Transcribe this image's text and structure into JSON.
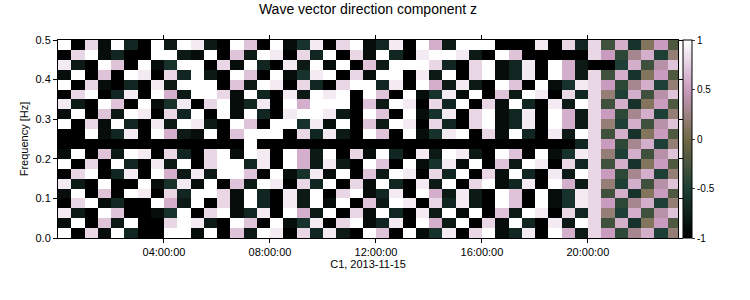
{
  "chart_data": {
    "type": "heatmap",
    "title": "Wave vector direction component z",
    "x_label": "C1, 2013-11-15",
    "y_label": "Frequency [Hz]",
    "xlim": [
      0,
      23.4
    ],
    "ylim": [
      0,
      0.5
    ],
    "xticks": [
      {
        "value": 4,
        "label": "04:00:00"
      },
      {
        "value": 8,
        "label": "08:00:00"
      },
      {
        "value": 12,
        "label": "12:00:00"
      },
      {
        "value": 16,
        "label": "16:00:00"
      },
      {
        "value": 20,
        "label": "20:00:00"
      }
    ],
    "yticks": [
      {
        "value": 0,
        "label": "0.0"
      },
      0.1,
      0.2,
      0.3,
      0.4,
      0.5
    ],
    "colorbar": {
      "range": [
        -1,
        1
      ],
      "ticks": [
        -1,
        -0.5,
        0,
        0.5,
        1
      ]
    },
    "x": [
      0.25,
      0.75,
      1.25,
      1.75,
      2.25,
      2.75,
      3.25,
      3.75,
      4.25,
      4.75,
      5.25,
      5.75,
      6.25,
      6.75,
      7.25,
      7.75,
      8.25,
      8.75,
      9.25,
      9.75,
      10.25,
      10.75,
      11.25,
      11.75,
      12.25,
      12.75,
      13.25,
      13.75,
      14.25,
      14.75,
      15.25,
      15.75,
      16.25,
      16.75,
      17.25,
      17.75,
      18.25,
      18.75,
      19.25,
      19.75,
      20.25,
      20.75,
      21.25,
      21.75,
      22.25,
      22.75,
      23.25
    ],
    "y": [
      0.0125,
      0.0375,
      0.0625,
      0.0875,
      0.1125,
      0.1375,
      0.1625,
      0.1875,
      0.2125,
      0.2375,
      0.2625,
      0.2875,
      0.3125,
      0.3375,
      0.3625,
      0.3875,
      0.4125,
      0.4375,
      0.4625,
      0.4875
    ],
    "z": [
      [
        1,
        -1,
        0.8,
        -0.9,
        1,
        -0.7,
        -1,
        -1,
        1,
        1,
        -0.9,
        1,
        -1,
        0.7,
        -0.8,
        1,
        0.9,
        -1,
        0.8,
        -0.7,
        0.9,
        -0.8,
        -1,
        1,
        0.7,
        -1,
        1,
        -0.9,
        -0.6,
        0.9,
        -1,
        0.8,
        1,
        -0.9,
        -0.7,
        0.9,
        -1,
        1,
        0.6,
        -0.8,
        0.8,
        0.5,
        -0.4,
        0.3,
        0.6,
        -0.5,
        0.2
      ],
      [
        -0.9,
        1,
        -1,
        0.7,
        -0.8,
        1,
        -1,
        -1,
        0.8,
        1,
        0.9,
        -0.8,
        -1,
        1,
        0.7,
        -1,
        1,
        -0.9,
        -0.6,
        0.9,
        -1,
        0.8,
        1,
        -0.9,
        -0.7,
        0.9,
        -1,
        1,
        0.6,
        -0.8,
        1,
        -1,
        0.8,
        -0.9,
        1,
        -0.7,
        -1,
        0.9,
        -0.8,
        1,
        0.8,
        -0.3,
        0.6,
        -0.6,
        0.1,
        0.5,
        -0.2
      ],
      [
        0.9,
        -0.8,
        -1,
        1,
        0.7,
        -1,
        -1,
        -0.9,
        -0.6,
        1,
        -1,
        0.8,
        1,
        -0.9,
        -0.7,
        0.9,
        -1,
        1,
        0.6,
        -0.8,
        1,
        -1,
        0.8,
        -0.9,
        1,
        -0.7,
        -1,
        0.9,
        -0.8,
        1,
        -0.9,
        1,
        -1,
        0.7,
        -0.8,
        1,
        0.9,
        -1,
        0.8,
        -0.7,
        0.8,
        0.2,
        -0.5,
        0.6,
        -0.3,
        0.4,
        0.7
      ],
      [
        -1,
        0.8,
        1,
        -0.9,
        -0.7,
        -1,
        -1,
        1,
        0.6,
        -0.8,
        1,
        -1,
        0.8,
        -0.9,
        1,
        -0.7,
        -1,
        0.9,
        -0.8,
        1,
        -0.9,
        1,
        -1,
        0.7,
        -0.8,
        1,
        0.9,
        -1,
        0.8,
        -0.7,
        0.9,
        -0.8,
        -1,
        1,
        0.7,
        -1,
        1,
        -0.9,
        -0.6,
        0.9,
        0.8,
        0.5,
        -0.4,
        0.3,
        0.6,
        -0.5,
        0.2
      ],
      [
        -0.9,
        1,
        -1,
        0.7,
        -1,
        1,
        0.9,
        -1,
        0.8,
        -0.7,
        1,
        1,
        0.8,
        -0.9,
        1,
        -0.7,
        -1,
        0.9,
        -0.8,
        1,
        -1,
        0.8,
        1,
        -0.9,
        -0.7,
        0.9,
        -1,
        1,
        0.6,
        -0.8,
        0.9,
        -0.8,
        -1,
        1,
        0.7,
        -1,
        1,
        -0.9,
        -0.6,
        0.9,
        0.8,
        -0.3,
        0.6,
        -0.6,
        0.1,
        0.5,
        -0.2
      ],
      [
        0.9,
        -0.8,
        -1,
        1,
        -1,
        -1,
        1,
        -0.9,
        -0.6,
        0.9,
        -0.9,
        1,
        -1,
        0.7,
        -0.8,
        1,
        0.9,
        -1,
        0.8,
        -0.7,
        1,
        -1,
        0.8,
        -0.9,
        1,
        -0.7,
        -1,
        0.9,
        -0.8,
        1,
        -1,
        0.8,
        1,
        -0.9,
        -0.7,
        0.9,
        -1,
        1,
        0.6,
        -0.8,
        0.8,
        0.2,
        -0.5,
        0.6,
        -0.3,
        0.4,
        0.7
      ],
      [
        -1,
        0.8,
        1,
        -1,
        -0.7,
        0.9,
        -1,
        1,
        0.6,
        -0.8,
        0.9,
        -0.8,
        1,
        1,
        0.7,
        -1,
        1,
        -0.9,
        -0.6,
        0.9,
        -0.9,
        1,
        -1,
        0.7,
        -0.8,
        1,
        0.9,
        -1,
        0.8,
        -0.7,
        1,
        -1,
        0.8,
        -0.9,
        1,
        -0.7,
        -1,
        0.9,
        -0.8,
        1,
        0.8,
        0.5,
        -0.4,
        0.3,
        0.6,
        -0.5,
        0.2
      ],
      [
        1,
        -1,
        0.8,
        -1,
        1,
        -0.7,
        -1,
        0.9,
        -0.8,
        1,
        -1,
        0.8,
        1,
        1,
        -0.7,
        0.9,
        -1,
        1,
        0.6,
        -0.8,
        0.9,
        -0.8,
        -1,
        1,
        0.7,
        -1,
        1,
        -0.9,
        -0.6,
        0.9,
        -0.9,
        1,
        -1,
        0.7,
        -0.8,
        1,
        0.9,
        -1,
        0.8,
        -0.7,
        0.8,
        -0.3,
        0.6,
        -0.6,
        0.1,
        0.5,
        -0.2
      ],
      [
        -0.9,
        1,
        -1,
        0.7,
        -0.8,
        1,
        0.9,
        -1,
        0.8,
        -0.7,
        -1,
        0.8,
        1,
        -0.9,
        1,
        0.9,
        -1,
        1,
        0.6,
        -0.8,
        1,
        -1,
        0.8,
        -0.9,
        1,
        -0.7,
        -1,
        0.9,
        -0.8,
        1,
        0.9,
        -0.8,
        -1,
        1,
        0.7,
        -1,
        1,
        -0.9,
        -0.6,
        0.9,
        0.8,
        0.2,
        -0.5,
        0.6,
        -0.3,
        0.4,
        0.7
      ],
      [
        -1,
        -1,
        -1,
        -1,
        -1,
        -1,
        -1,
        -1,
        -1,
        -1,
        -1,
        -1,
        -1,
        -1,
        1,
        -1,
        -1,
        -1,
        -1,
        -1,
        -1,
        -1,
        -1,
        -1,
        -1,
        -1,
        -1,
        -1,
        -1,
        -1,
        -1,
        -1,
        -1,
        -1,
        -1,
        -1,
        -1,
        -1,
        -1,
        -0.7,
        0.8,
        0.5,
        -0.4,
        0.3,
        0.6,
        -0.5,
        0.2
      ],
      [
        -1,
        -1,
        1,
        -0.9,
        -0.7,
        0.9,
        -1,
        1,
        0.6,
        -0.8,
        -0.9,
        1,
        -1,
        0.7,
        1,
        1,
        1,
        -1,
        0.8,
        -0.7,
        0.9,
        -0.8,
        -1,
        1,
        0.7,
        -1,
        1,
        -0.9,
        -0.6,
        0.9,
        1,
        -1,
        0.8,
        -0.9,
        1,
        -0.7,
        -1,
        0.9,
        -0.8,
        1,
        0.8,
        -0.3,
        0.6,
        -0.6,
        0.1,
        0.5,
        -0.2
      ],
      [
        1,
        -1,
        0.8,
        -0.9,
        1,
        -0.7,
        -1,
        0.9,
        -0.8,
        1,
        0.9,
        -0.8,
        -1,
        1,
        0.7,
        -1,
        1,
        1,
        -0.6,
        0.9,
        -0.9,
        1,
        -1,
        0.7,
        -0.8,
        1,
        0.9,
        -1,
        0.8,
        -0.7,
        -1,
        0.8,
        1,
        -0.9,
        -0.7,
        0.9,
        -1,
        1,
        0.6,
        -0.8,
        0.8,
        0.2,
        -0.5,
        0.6,
        -0.3,
        0.4,
        0.7
      ],
      [
        -0.9,
        1,
        -1,
        0.7,
        -0.8,
        1,
        0.9,
        -1,
        0.8,
        -0.7,
        1,
        -1,
        1,
        -0.9,
        1,
        -0.7,
        -1,
        0.9,
        1,
        1,
        0.9,
        -0.8,
        -1,
        1,
        0.7,
        -1,
        1,
        -0.9,
        -0.6,
        0.9,
        -1,
        0.8,
        1,
        -0.9,
        -0.7,
        0.9,
        -1,
        1,
        0.6,
        -0.8,
        0.8,
        0.5,
        -0.4,
        0.3,
        0.6,
        -0.5,
        0.2
      ],
      [
        0.9,
        -0.8,
        -1,
        1,
        0.7,
        -1,
        1,
        -0.9,
        -0.6,
        0.9,
        -1,
        0.8,
        1,
        -0.9,
        -0.7,
        0.9,
        -1,
        1,
        0.6,
        1,
        1,
        1,
        -1,
        0.7,
        -0.8,
        1,
        0.9,
        -1,
        0.8,
        -0.7,
        1,
        -1,
        0.8,
        -0.9,
        1,
        -0.7,
        -1,
        0.9,
        -0.8,
        1,
        0.8,
        -0.3,
        0.6,
        -0.6,
        0.1,
        0.5,
        -0.2
      ],
      [
        -1,
        0.8,
        1,
        -1,
        -0.7,
        0.9,
        -1,
        1,
        0.6,
        -0.8,
        1,
        1,
        0.8,
        -0.9,
        1,
        -0.7,
        -1,
        0.9,
        -0.8,
        1,
        0.9,
        1,
        -1,
        1,
        0.7,
        -1,
        1,
        -0.9,
        -0.6,
        0.9,
        -0.9,
        1,
        -1,
        0.7,
        -0.8,
        1,
        0.9,
        -1,
        0.8,
        -0.7,
        0.8,
        0.2,
        -0.5,
        0.6,
        -0.3,
        0.4,
        0.7
      ],
      [
        1,
        -1,
        0.8,
        -0.9,
        -1,
        -0.7,
        -1,
        0.9,
        -0.8,
        1,
        1,
        1,
        -1,
        0.7,
        -0.8,
        1,
        0.9,
        -1,
        0.8,
        -0.7,
        -1,
        0.8,
        1,
        1,
        -0.7,
        0.9,
        -1,
        1,
        0.6,
        -0.8,
        0.9,
        -0.8,
        -1,
        1,
        0.7,
        -1,
        1,
        -0.9,
        -0.6,
        0.9,
        0.8,
        0.5,
        -0.4,
        0.3,
        0.6,
        -0.5,
        0.2
      ],
      [
        -0.9,
        1,
        -1,
        0.7,
        -1,
        1,
        0.9,
        -1,
        0.8,
        -0.7,
        1,
        -0.8,
        -1,
        1,
        0.7,
        -1,
        1,
        -0.9,
        -0.6,
        0.9,
        1,
        -1,
        0.8,
        -0.9,
        1,
        1,
        -1,
        0.9,
        -0.8,
        1,
        -1,
        0.8,
        1,
        -0.9,
        -0.7,
        0.9,
        -1,
        1,
        0.6,
        -0.8,
        0.8,
        -0.3,
        0.6,
        -0.6,
        0.1,
        0.5,
        -0.2
      ],
      [
        0.9,
        -0.8,
        -1,
        1,
        0.7,
        -1,
        1,
        -0.9,
        -0.6,
        1,
        1,
        -1,
        0.8,
        -0.9,
        1,
        -0.7,
        -1,
        0.9,
        -0.8,
        1,
        -0.9,
        1,
        -1,
        0.7,
        -0.8,
        1,
        1,
        1,
        0.8,
        -0.7,
        -1,
        0.8,
        1,
        -0.9,
        -0.7,
        0.9,
        -1,
        1,
        0.6,
        -0.8,
        -1,
        -1,
        -0.5,
        0.6,
        -0.3,
        0.4,
        0.7
      ],
      [
        -1,
        0.8,
        1,
        -0.9,
        -0.7,
        -1,
        -1,
        1,
        1,
        -0.8,
        -0.9,
        1,
        -1,
        0.7,
        -0.8,
        1,
        0.9,
        -1,
        0.8,
        -0.7,
        1,
        -1,
        0.8,
        -0.9,
        1,
        -0.7,
        -1,
        0.9,
        1,
        1,
        0.9,
        -0.8,
        -1,
        1,
        0.7,
        -1,
        -1,
        -1,
        -1,
        -1,
        0.8,
        0.5,
        -0.4,
        0.3,
        0.6,
        -0.5,
        0.2
      ],
      [
        1,
        -1,
        0.8,
        -0.9,
        1,
        -0.7,
        -1,
        1,
        -0.8,
        1,
        0.9,
        -0.8,
        -1,
        1,
        0.7,
        -1,
        1,
        -0.9,
        -0.6,
        0.9,
        -1,
        0.8,
        1,
        -0.9,
        -0.7,
        0.9,
        -1,
        1,
        0.6,
        -0.8,
        1,
        1,
        1,
        -1,
        -1,
        -1,
        0.9,
        -1,
        0.8,
        -0.7,
        0.8,
        -0.3,
        0.6,
        -0.6,
        0.1,
        0.5,
        -0.2
      ]
    ]
  }
}
